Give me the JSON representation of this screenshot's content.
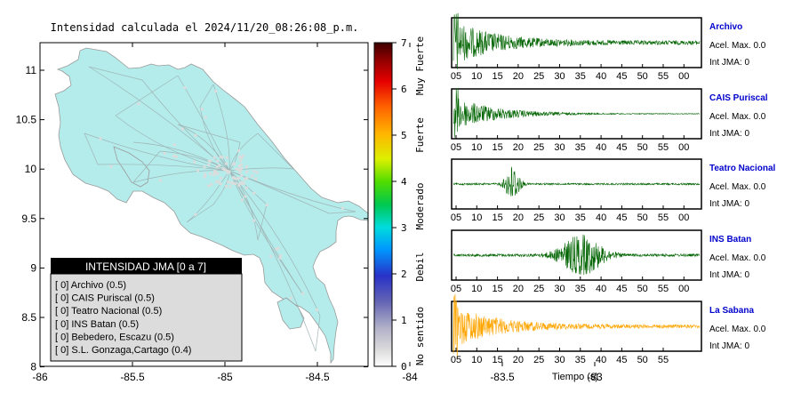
{
  "map": {
    "title": "Intensidad calculada el 2024/11/20_08:26:08_p.m.",
    "x_ticks": [
      "-86",
      "-85.5",
      "-85",
      "-84.5",
      "-84",
      "-83.5",
      "-83"
    ],
    "y_ticks": [
      "11",
      "10.5",
      "10",
      "9.5",
      "9",
      "8.5",
      "8"
    ],
    "land_color": "#b4eceb",
    "legend": {
      "title": "INTENSIDAD JMA [0 a 7]",
      "items": [
        "[ 0]  Archivo (0.5)",
        "[ 0]  CAIS Puriscal (0.5)",
        "[ 0]  Teatro Nacional (0.5)",
        "[ 0]  INS Batan (0.5)",
        "[ 0]  Bebedero, Escazu (0.5)",
        "[ 0]  S.L. Gonzaga,Cartago (0.4)"
      ]
    }
  },
  "colorbar": {
    "ticks": [
      "7",
      "6",
      "5",
      "4",
      "3",
      "2",
      "1",
      "0"
    ],
    "labels": [
      "Muy Fuerte",
      "Fuerte",
      "Moderado",
      "Debil",
      "No sentido"
    ]
  },
  "chart_data": [
    {
      "type": "line",
      "name": "Archivo",
      "accel_label": "Acel. Max. 0.0",
      "jma_label": "Int JMA: 0",
      "color": "#006400",
      "x_ticks": [
        "05",
        "10",
        "15",
        "20",
        "25",
        "30",
        "35",
        "40",
        "45",
        "50",
        "55",
        "00"
      ],
      "xlabel": ""
    },
    {
      "type": "line",
      "name": "CAIS Puriscal",
      "accel_label": "Acel. Max. 0.0",
      "jma_label": "Int JMA: 0",
      "color": "#006400",
      "x_ticks": [
        "05",
        "10",
        "15",
        "20",
        "25",
        "30",
        "35",
        "40",
        "45",
        "50",
        "55",
        "00"
      ],
      "xlabel": ""
    },
    {
      "type": "line",
      "name": "Teatro Nacional",
      "accel_label": "Acel. Max. 0.0",
      "jma_label": "Int JMA: 0",
      "color": "#006400",
      "x_ticks": [
        "05",
        "10",
        "15",
        "20",
        "25",
        "30",
        "35",
        "40",
        "45",
        "50",
        "55",
        "00"
      ],
      "xlabel": ""
    },
    {
      "type": "line",
      "name": "INS Batan",
      "accel_label": "Acel. Max. 0.0",
      "jma_label": "Int JMA: 0",
      "color": "#006400",
      "x_ticks": [
        "05",
        "10",
        "15",
        "20",
        "25",
        "30",
        "35",
        "40",
        "45",
        "50",
        "55",
        "00"
      ],
      "xlabel": ""
    },
    {
      "type": "line",
      "name": "La Sabana",
      "accel_label": "Acel. Max. 0.0",
      "jma_label": "Int JMA: 0",
      "color": "#ffa500",
      "x_ticks": [
        "05",
        "10",
        "15",
        "20",
        "25",
        "30",
        "35",
        "40",
        "45",
        "50",
        "55"
      ],
      "xlabel": "Tiempo (s)"
    }
  ]
}
